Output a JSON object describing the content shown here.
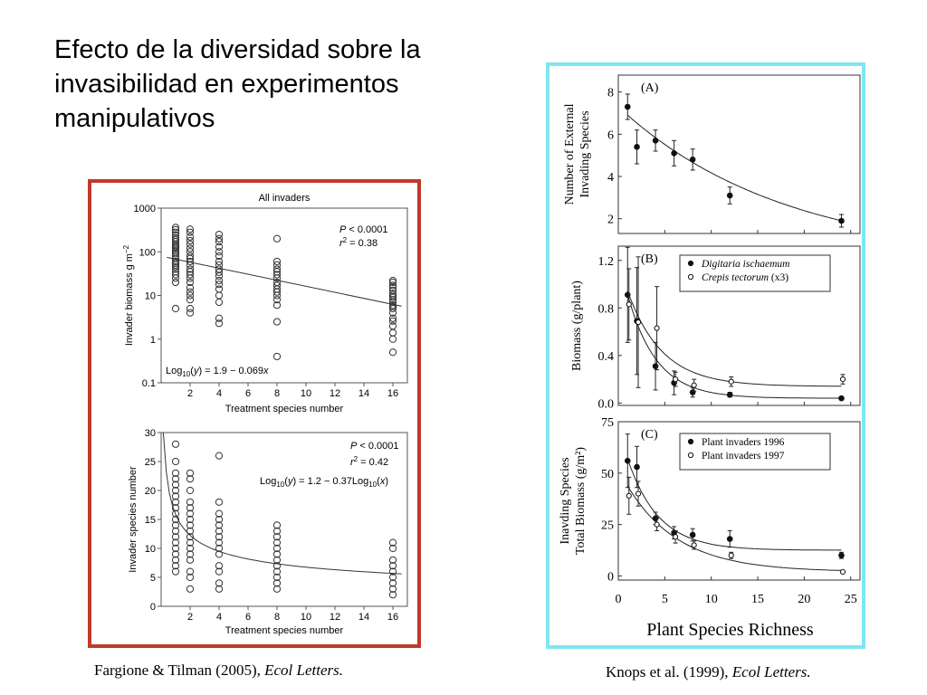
{
  "slide": {
    "title_lines": [
      "Efecto de la diversidad sobre la",
      "invasibilidad en experimentos",
      "manipulativos"
    ]
  },
  "captions": {
    "left_authors": "Fargione & Tilman (2005), ",
    "left_journal": "Ecol Letters.",
    "right_authors": "Knops et al. (1999), ",
    "right_journal": "Ecol Letters."
  },
  "colors": {
    "left_frame": "#c0392b",
    "right_frame": "#7fe7f0"
  },
  "chart_data": [
    {
      "id": "fargione-biomass",
      "type": "scatter",
      "title": "All invaders",
      "xlabel": "Treatment species number",
      "ylabel": "Invader biomass g m",
      "ylabel_exp": "−2",
      "xlim": [
        0,
        17
      ],
      "ylim": [
        0.1,
        1000
      ],
      "yscale": "log",
      "xticks": [
        2,
        4,
        6,
        8,
        10,
        12,
        14,
        16
      ],
      "yticks": [
        {
          "v": 0.1,
          "label": "0.1"
        },
        {
          "v": 1,
          "label": "1"
        },
        {
          "v": 10,
          "label": "10"
        },
        {
          "v": 100,
          "label": "100"
        },
        {
          "v": 1000,
          "label": "1000"
        }
      ],
      "stats": {
        "p_var": "P",
        "p_rest": " < 0.0001",
        "r_var": "r",
        "r_exp": "2",
        "r_rest": " = 0.38"
      },
      "equation": {
        "pre": "Log",
        "sub": "10",
        "mid": "(",
        "var": "y",
        "post": ") = 1.9 − 0.069",
        "var2": "x"
      },
      "fit": {
        "intercept": 1.9,
        "slope": -0.069
      },
      "series": [
        {
          "x": 1,
          "values": [
            5,
            20,
            25,
            30,
            35,
            40,
            45,
            50,
            55,
            60,
            70,
            80,
            90,
            100,
            110,
            120,
            130,
            140,
            150,
            170,
            190,
            210,
            240,
            280,
            320,
            360
          ]
        },
        {
          "x": 2,
          "values": [
            4,
            5,
            8,
            10,
            12,
            15,
            20,
            25,
            30,
            35,
            40,
            50,
            60,
            70,
            80,
            100,
            120,
            150,
            180,
            220,
            280,
            330
          ]
        },
        {
          "x": 4,
          "values": [
            2.3,
            3,
            7,
            10,
            14,
            18,
            22,
            28,
            34,
            40,
            50,
            60,
            80,
            100,
            130,
            170,
            200,
            250
          ]
        },
        {
          "x": 8,
          "values": [
            0.4,
            2.5,
            6,
            8,
            10,
            12,
            14,
            17,
            20,
            25,
            30,
            35,
            40,
            50,
            60,
            200
          ]
        },
        {
          "x": 16,
          "values": [
            0.5,
            1,
            1.4,
            2,
            2.6,
            3,
            4,
            5,
            5.5,
            6,
            7,
            8,
            9,
            10,
            11,
            13,
            15,
            17,
            20,
            22
          ]
        }
      ]
    },
    {
      "id": "fargione-species",
      "type": "scatter",
      "title": "",
      "xlabel": "Treatment species number",
      "ylabel": "Invader species number",
      "xlim": [
        0,
        17
      ],
      "ylim": [
        0,
        30
      ],
      "xticks": [
        2,
        4,
        6,
        8,
        10,
        12,
        14,
        16
      ],
      "yticks": [
        0,
        5,
        10,
        15,
        20,
        25,
        30
      ],
      "stats": {
        "p_var": "P",
        "p_rest": " < 0.0001",
        "r_var": "r",
        "r_exp": "2",
        "r_rest": " = 0.42"
      },
      "equation": {
        "pre": "Log",
        "sub": "10",
        "mid": "(",
        "var": "y",
        "post": ") = 1.2 − 0.37Log",
        "sub2": "10",
        "mid2": "(",
        "var2": "x",
        "post2": ")"
      },
      "fit": {
        "intercept": 1.2,
        "slope": -0.37
      },
      "series": [
        {
          "x": 1,
          "values": [
            6,
            7,
            8,
            9,
            10,
            11,
            12,
            13,
            14,
            15,
            16,
            17,
            18,
            19,
            20,
            21,
            22,
            23,
            25,
            28
          ]
        },
        {
          "x": 2,
          "values": [
            3,
            5,
            6,
            8,
            9,
            10,
            11,
            12,
            13,
            14,
            15,
            16,
            17,
            18,
            20,
            22,
            23
          ]
        },
        {
          "x": 4,
          "values": [
            3,
            4,
            6,
            7,
            9,
            10,
            11,
            12,
            13,
            14,
            15,
            16,
            18,
            26
          ]
        },
        {
          "x": 8,
          "values": [
            3,
            4,
            5,
            6,
            7,
            8,
            9,
            10,
            11,
            12,
            13,
            14
          ]
        },
        {
          "x": 16,
          "values": [
            2,
            3,
            4,
            5,
            6,
            7,
            8,
            10,
            11
          ]
        }
      ]
    },
    {
      "id": "knops-A",
      "type": "scatter",
      "panel_label": "(A)",
      "ylabel_lines": [
        "Number of External",
        "Invading Species"
      ],
      "xlim": [
        0,
        26
      ],
      "ylim": [
        1.3,
        8.8
      ],
      "yticks": [
        2,
        4,
        6,
        8
      ],
      "series": [
        {
          "marker": "filled",
          "x": [
            1,
            2,
            4,
            6,
            8,
            12,
            24
          ],
          "y": [
            7.3,
            5.4,
            5.7,
            5.1,
            4.8,
            3.1,
            1.9
          ],
          "err": [
            0.6,
            0.8,
            0.5,
            0.6,
            0.5,
            0.4,
            0.3
          ]
        }
      ],
      "fit": {
        "type": "exp",
        "c": 0.0,
        "a": 7.3,
        "k": 0.056
      }
    },
    {
      "id": "knops-B",
      "type": "scatter",
      "panel_label": "(B)",
      "ylabel": "Biomass (g/plant)",
      "xlim": [
        0,
        26
      ],
      "ylim": [
        -0.02,
        1.32
      ],
      "yticks": [
        {
          "v": 0.0,
          "label": "0.0"
        },
        {
          "v": 0.4,
          "label": "0.4"
        },
        {
          "v": 0.8,
          "label": "0.8"
        },
        {
          "v": 1.2,
          "label": "1.2"
        }
      ],
      "legend": [
        {
          "marker": "filled",
          "label": "Digitaria ischaemum",
          "italic": true,
          "suffix": ""
        },
        {
          "marker": "open",
          "label": "Crepis tectorum",
          "italic": true,
          "suffix": " (x3)"
        }
      ],
      "series": [
        {
          "marker": "filled",
          "x": [
            1,
            2,
            4,
            6,
            8,
            12,
            24
          ],
          "y": [
            0.91,
            0.69,
            0.31,
            0.17,
            0.09,
            0.07,
            0.04
          ],
          "err": [
            0.4,
            0.45,
            0.2,
            0.1,
            0.04,
            0.02,
            0.01
          ]
        },
        {
          "marker": "open",
          "x": [
            1,
            2,
            4,
            6,
            8,
            12,
            24
          ],
          "y": [
            0.83,
            0.68,
            0.63,
            0.2,
            0.15,
            0.18,
            0.2
          ],
          "err": [
            0.3,
            0.55,
            0.35,
            0.06,
            0.05,
            0.04,
            0.04
          ]
        }
      ],
      "fits": [
        {
          "type": "exp",
          "c": 0.04,
          "a": 1.2,
          "k": 0.32
        },
        {
          "type": "exp",
          "c": 0.14,
          "a": 1.05,
          "k": 0.27
        }
      ]
    },
    {
      "id": "knops-C",
      "type": "scatter",
      "panel_label": "(C)",
      "ylabel_lines": [
        "Inavding Species",
        "Total Biomass (g/m²)"
      ],
      "xlabel": "Plant Species Richness",
      "xlim": [
        0,
        26
      ],
      "ylim": [
        -2,
        75
      ],
      "xticks": [
        0,
        5,
        10,
        15,
        20,
        25
      ],
      "yticks": [
        0,
        25,
        50,
        75
      ],
      "legend": [
        {
          "marker": "filled",
          "label": "Plant invaders 1996",
          "italic": false,
          "suffix": ""
        },
        {
          "marker": "open",
          "label": "Plant invaders 1997",
          "italic": false,
          "suffix": ""
        }
      ],
      "series": [
        {
          "marker": "filled",
          "x": [
            1,
            2,
            4,
            6,
            8,
            12,
            24
          ],
          "y": [
            56,
            53,
            28,
            21,
            20,
            18,
            10
          ],
          "err": [
            13,
            10,
            3,
            3,
            3,
            4,
            1.5
          ]
        },
        {
          "marker": "open",
          "x": [
            1,
            2,
            4,
            6,
            8,
            12,
            24
          ],
          "y": [
            39,
            40,
            25,
            19,
            15,
            10,
            2
          ],
          "err": [
            9,
            6,
            3,
            3,
            2,
            1.5,
            0.5
          ]
        }
      ],
      "fits": [
        {
          "type": "exp",
          "c": 12.5,
          "a": 60,
          "k": 0.3
        },
        {
          "type": "exp",
          "c": 2,
          "a": 50,
          "k": 0.18
        }
      ]
    }
  ]
}
